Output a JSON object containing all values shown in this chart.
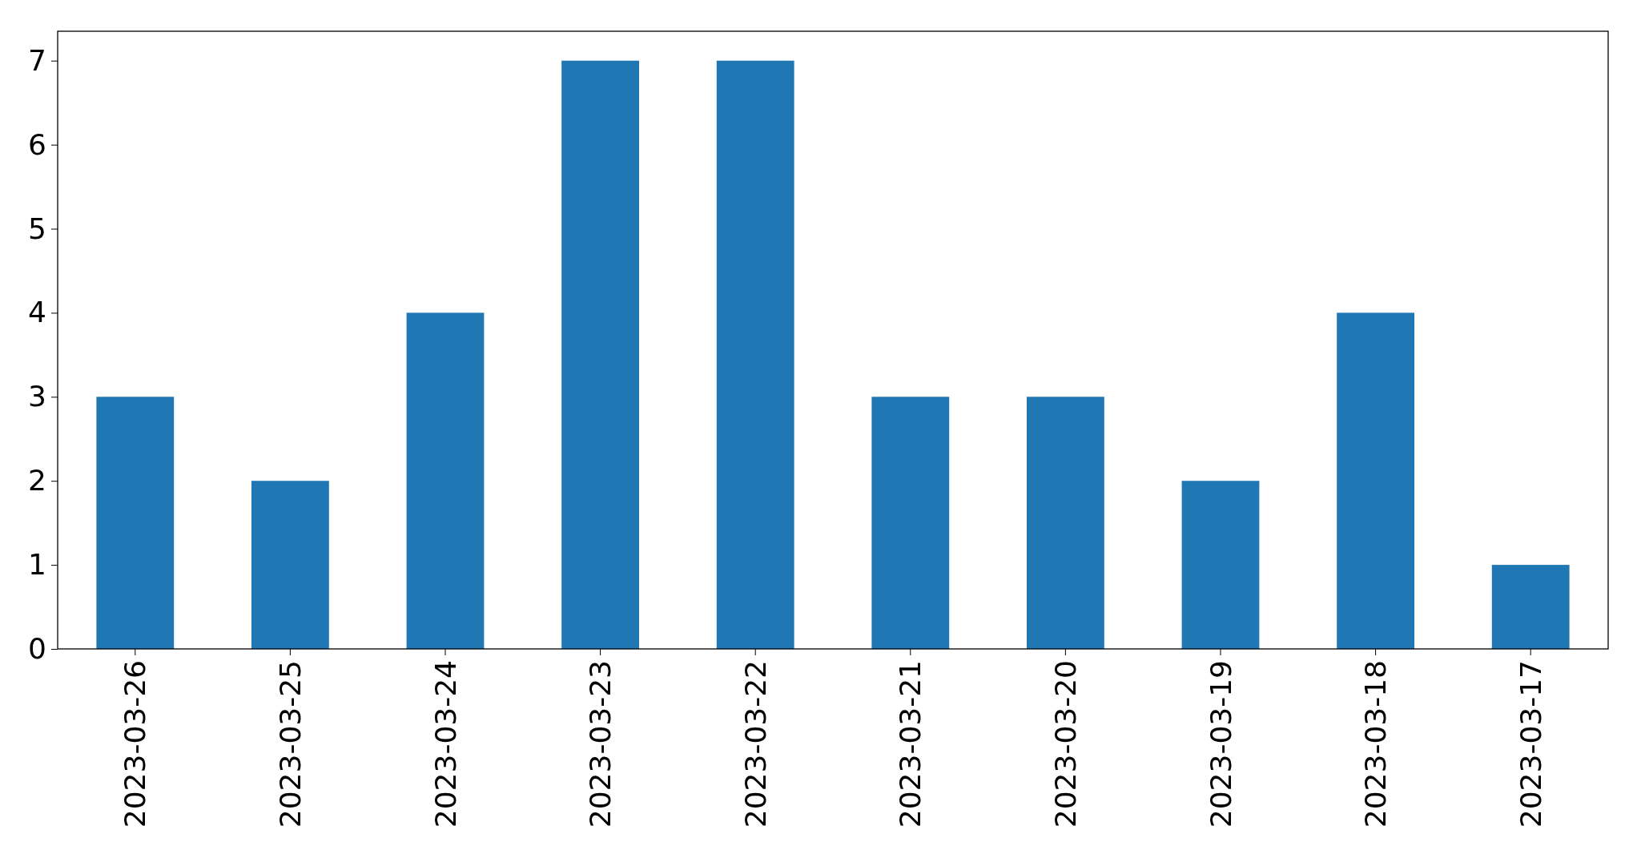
{
  "chart_data": {
    "type": "bar",
    "categories": [
      "2023-03-26",
      "2023-03-25",
      "2023-03-24",
      "2023-03-23",
      "2023-03-22",
      "2023-03-21",
      "2023-03-20",
      "2023-03-19",
      "2023-03-18",
      "2023-03-17"
    ],
    "values": [
      3,
      2,
      4,
      7,
      7,
      3,
      3,
      2,
      4,
      1
    ],
    "color": "#1f77b4",
    "ylim": [
      0,
      7.35
    ],
    "yticks": [
      0,
      1,
      2,
      3,
      4,
      5,
      6,
      7
    ],
    "grid": false
  }
}
